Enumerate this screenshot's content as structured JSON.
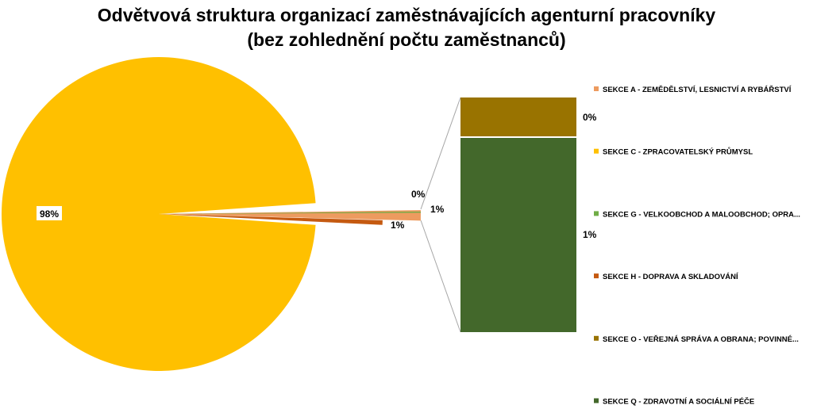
{
  "chart_data": {
    "type": "pie",
    "subtype": "pie-of-bar",
    "title": "Odvětvová struktura organizací zaměstnávajících agenturní pracovníky",
    "subtitle": "(bez zohlednění počtu zaměstnanců)",
    "slices": [
      {
        "name": "SEKCE A - ZEMĚDĚLSTVÍ, LESNICTVÍ A RYBÁŘSTVÍ",
        "value": 1,
        "label": "1%",
        "color": "#ED9B5F"
      },
      {
        "name": "SEKCE C - ZPRACOVATELSKÝ PRŮMYSL",
        "value": 98,
        "label": "98%",
        "color": "#FFC000"
      },
      {
        "name": "SEKCE G - VELKOOBCHOD A MALOOBCHOD; OPRA...",
        "value": 0,
        "label": "0%",
        "color": "#70AD47"
      },
      {
        "name": "SEKCE H - DOPRAVA A SKLADOVÁNÍ",
        "value": 1,
        "label": "1%",
        "color": "#C55A11"
      }
    ],
    "bar_breakdown": [
      {
        "name": "SEKCE O - VEŘEJNÁ SPRÁVA A OBRANA; POVINNÉ...",
        "value": 0,
        "label": "0%",
        "color": "#997300"
      },
      {
        "name": "SEKCE Q - ZDRAVOTNÍ A SOCIÁLNÍ PÉČE",
        "value": 1,
        "label": "1%",
        "color": "#43682B"
      }
    ],
    "legend": [
      {
        "name": "SEKCE A - ZEMĚDĚLSTVÍ, LESNICTVÍ A RYBÁŘSTVÍ",
        "color": "#ED9B5F"
      },
      {
        "name": "SEKCE C - ZPRACOVATELSKÝ PRŮMYSL",
        "color": "#FFC000"
      },
      {
        "name": "SEKCE G - VELKOOBCHOD A MALOOBCHOD; OPRA...",
        "color": "#70AD47"
      },
      {
        "name": "SEKCE H - DOPRAVA A SKLADOVÁNÍ",
        "color": "#C55A11"
      },
      {
        "name": "SEKCE O - VEŘEJNÁ SPRÁVA A OBRANA; POVINNÉ...",
        "color": "#997300"
      },
      {
        "name": "SEKCE Q - ZDRAVOTNÍ A SOCIÁLNÍ PÉČE",
        "color": "#43682B"
      }
    ],
    "legend_position": "right"
  }
}
